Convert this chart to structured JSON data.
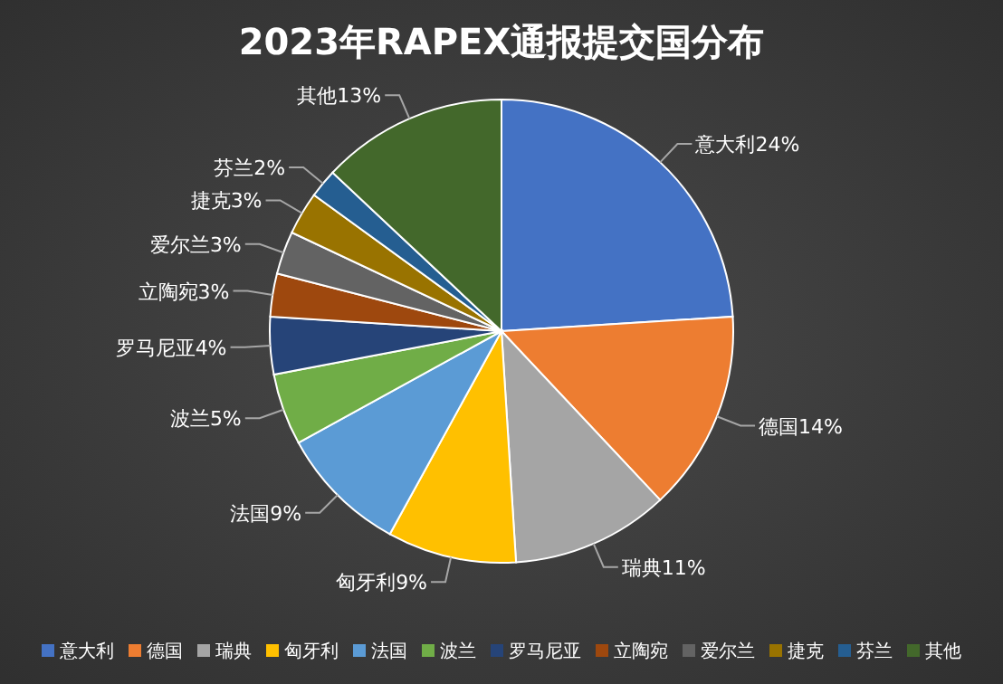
{
  "chart_data": {
    "type": "pie",
    "title": "2023年RAPEX通报提交国分布",
    "categories": [
      "意大利",
      "德国",
      "瑞典",
      "匈牙利",
      "法国",
      "波兰",
      "罗马尼亚",
      "立陶宛",
      "爱尔兰",
      "捷克",
      "芬兰",
      "其他"
    ],
    "values": [
      24,
      14,
      11,
      9,
      9,
      5,
      4,
      3,
      3,
      3,
      2,
      13
    ],
    "colors": [
      "#4472c4",
      "#ed7d31",
      "#a5a5a5",
      "#ffc000",
      "#5b9bd5",
      "#70ad47",
      "#264478",
      "#9e480e",
      "#636363",
      "#997300",
      "#255e91",
      "#43682b"
    ],
    "value_labels": [
      "24%",
      "14%",
      "11%",
      "9%",
      "9%",
      "5%",
      "4%",
      "3%",
      "3%",
      "3%",
      "2%",
      "13%"
    ],
    "legend": "bottom"
  }
}
